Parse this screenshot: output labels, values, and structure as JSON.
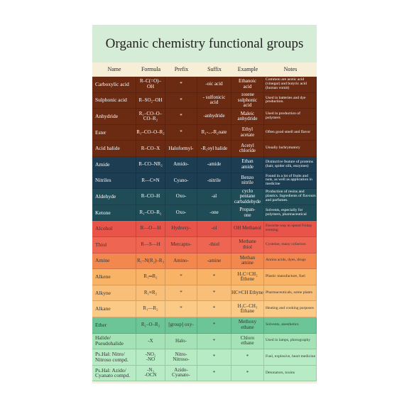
{
  "header": {
    "title": "Organic chemistry functional groups"
  },
  "table": {
    "columns": [
      "Name",
      "Formula",
      "Prefix",
      "Suffix",
      "Example",
      "Notes"
    ],
    "rows": [
      [
        "Carboxylic acid",
        "R–C(=O)–OH",
        "*",
        "-oic acid",
        "Ethanoic\nacid",
        "Common are acetic acid (vinegar) and butyric acid (human vomit)"
      ],
      [
        "Sulphonic acid",
        "R–SO₂–OH",
        "*",
        "- sulfonicic\nacid",
        "Tolene\nsulphonic\nacid",
        "Used in batteries and dye production."
      ],
      [
        "Anhydride",
        "R₁–CO–O–CO–R₂",
        "*",
        "-anhydride",
        "Maleic\nanhydride",
        "Used in production of polymers"
      ],
      [
        "Ester",
        "R₁–CO–O–R₂",
        "*",
        "R₁-...-R₂oate",
        "Ethyl\nacetate",
        "Often good smell and flavor"
      ],
      [
        "Acid halide",
        "R–CO–X",
        "Haloformyl-",
        "-R₁oyl halide",
        "Acetyl\nchloride",
        "Usually lachrymatory"
      ],
      [
        "Amide",
        "R–CO–NR₂",
        "Amido-",
        "-amide",
        "Ethan\namide",
        "Distinctive feature of proteins (hair, spider silk, enzymes)"
      ],
      [
        "Nitriles",
        "R—C≡N",
        "Cyano-",
        "-nitrile",
        "Benzo\nnitrile",
        "Found in a lot of fruits and nuts, as well as application in medicine"
      ],
      [
        "Aldehyde",
        "R–CO–H",
        "Oxo-",
        "-al",
        "cyclo\npentane\ncarbaldehyde",
        "Production of resins and plastics. Ingredients of flavours and parfumes."
      ],
      [
        "Ketone",
        "R₁–CO–R₂",
        "Oxo-",
        "-one",
        "Propan-\none",
        "Solvents, especially for polymers, pharmaceutical"
      ],
      [
        "Alcohol",
        "R—O—H",
        "Hydroxy-",
        "-ol",
        "OH Methanol",
        "Favorite way to spend Friday evening"
      ],
      [
        "Thiol",
        "R—S—H",
        "Mercapto-",
        "-thiol",
        "Methane\nthiol",
        "Cysteine, many cofactors"
      ],
      [
        "Amine",
        "R₁–N(R₂)–R₃",
        "Amino-",
        "-amine",
        "Methan\namine",
        "Amino acids, dyes, drugs"
      ],
      [
        "Alkene",
        "R₁═R₂",
        "*",
        "*",
        "H₂C=CH₂ Ethene",
        "Plastic manufacture, fuel"
      ],
      [
        "Alkyne",
        "R₁≡R₂",
        "*",
        "*",
        "HC≡CH Ethyne",
        "Pharmaceuticals, some plants"
      ],
      [
        "Alkane",
        "R₁—R₂",
        "*",
        "*",
        "H₃C–CH₃ Ethane",
        "Heating and cooking purposes"
      ],
      [
        "Ether",
        "R₁–O–R₂",
        "[group] oxy-",
        "*",
        "Methoxy\nethane",
        "Solvents, anesthetics"
      ],
      [
        "Halide/\nPseudohalide",
        "-X",
        "Halo-",
        "*",
        "Chloro\nethane",
        "Used in lamps, photography"
      ],
      [
        "Ps.Hal: Nitro/\nNitroso compd.",
        "-NO₂\n-NO",
        "Nitro-\nNitroso-",
        "*",
        "*",
        "Fuel, explosive, heart medicine"
      ],
      [
        "Ps.Hal: Azido/\nCyanato compd.",
        "-N₃\n-OCN",
        "Azido-\nCyanato-",
        "*",
        "*",
        "Detonators, toxins"
      ]
    ]
  }
}
